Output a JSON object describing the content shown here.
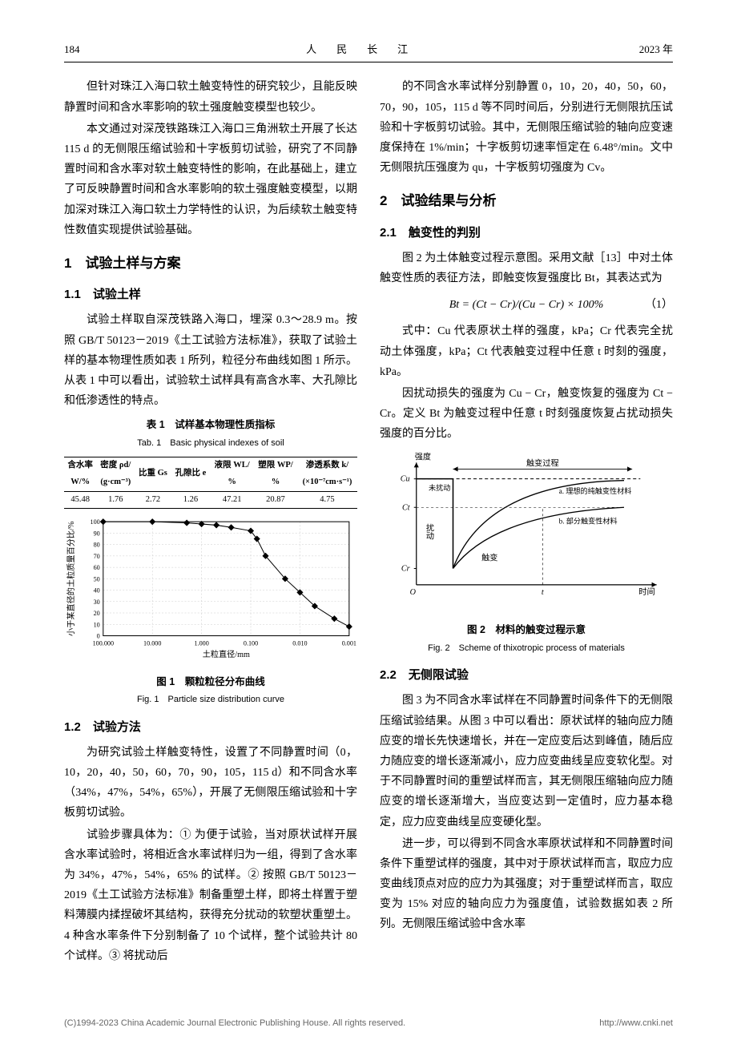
{
  "header": {
    "page_num": "184",
    "journal": "人　民　长　江",
    "year": "2023 年"
  },
  "left": {
    "p1": "但针对珠江入海口软土触变特性的研究较少，且能反映静置时间和含水率影响的软土强度触变模型也较少。",
    "p2": "本文通过对深茂铁路珠江入海口三角洲软土开展了长达 115 d 的无侧限压缩试验和十字板剪切试验，研究了不同静置时间和含水率对软土触变特性的影响，在此基础上，建立了可反映静置时间和含水率影响的软土强度触变模型，以期加深对珠江入海口软土力学特性的认识，为后续软土触变特性数值实现提供试验基础。",
    "sec1": "1　试验土样与方案",
    "sec11": "1.1　试验土样",
    "p3": "试验土样取自深茂铁路入海口，埋深 0.3～28.9 m。按照 GB/T 50123－2019《土工试验方法标准》，获取了试验土样的基本物理性质如表 1 所列，粒径分布曲线如图 1 所示。从表 1 中可以看出，试验软土试样具有高含水率、大孔隙比和低渗透性的特点。",
    "table1": {
      "caption_cn": "表 1　试样基本物理性质指标",
      "caption_en": "Tab. 1　Basic physical indexes of soil",
      "headers_top": [
        "含水率",
        "密度 ρd/",
        "比重 Gs",
        "孔隙比 e",
        "液限 WL/",
        "塑限 WP/",
        "渗透系数 k/"
      ],
      "headers_bot": [
        "W/%",
        "(g·cm⁻³)",
        "",
        "",
        "%",
        "%",
        "(×10⁻⁷cm·s⁻¹)"
      ],
      "row": [
        "45.48",
        "1.76",
        "2.72",
        "1.26",
        "47.21",
        "20.87",
        "4.75"
      ]
    },
    "fig1": {
      "caption_cn": "图 1　颗粒粒径分布曲线",
      "caption_en": "Fig. 1　Particle size distribution curve",
      "xlabel": "土粒直径/mm",
      "ylabel": "小于某直径的土粒质量百分比/%",
      "xticks": [
        "100.000",
        "10.000",
        "1.000",
        "0.100",
        "0.010",
        "0.001"
      ],
      "yticks": [
        0,
        10,
        20,
        30,
        40,
        50,
        60,
        70,
        80,
        90,
        100
      ],
      "points_x": [
        100,
        10,
        2,
        1,
        0.5,
        0.25,
        0.1,
        0.075,
        0.05,
        0.02,
        0.01,
        0.005,
        0.002,
        0.001
      ],
      "points_y": [
        100,
        100,
        99,
        98,
        97,
        95,
        92,
        85,
        70,
        50,
        38,
        26,
        15,
        8
      ],
      "line_color": "#000000",
      "marker": "diamond",
      "marker_size": 4,
      "grid_color": "#cccccc",
      "background_color": "#ffffff"
    },
    "sec12": "1.2　试验方法",
    "p4": "为研究试验土样触变特性，设置了不同静置时间（0，10，20，40，50，60，70，90，105，115 d）和不同含水率（34%，47%，54%，65%），开展了无侧限压缩试验和十字板剪切试验。",
    "p5": "试验步骤具体为：① 为便于试验，当对原状试样开展含水率试验时，将相近含水率试样归为一组，得到了含水率为 34%，47%，54%，65% 的试样。② 按照 GB/T 50123－2019《土工试验方法标准》制备重塑土样，即将土样置于塑料薄膜内揉捏破坏其结构，获得充分扰动的软塑状重塑土。4 种含水率条件下分别制备了 10 个试样，整个试验共计 80 个试样。③ 将扰动后"
  },
  "right": {
    "p1": "的不同含水率试样分别静置 0，10，20，40，50，60，70，90，105，115 d 等不同时间后，分别进行无侧限抗压试验和十字板剪切试验。其中，无侧限压缩试验的轴向应变速度保持在 1%/min；十字板剪切速率恒定在 6.48°/min。文中无侧限抗压强度为 qu，十字板剪切强度为 Cv。",
    "sec2": "2　试验结果与分析",
    "sec21": "2.1　触变性的判别",
    "p2": "图 2 为土体触变过程示意图。采用文献［13］中对土体触变性质的表征方法，即触变恢复强度比 Bt，其表达式为",
    "eq1": "Bt = (Ct − Cr)/(Cu − Cr) × 100%",
    "eq1_num": "（1）",
    "p3": "式中：Cu 代表原状土样的强度，kPa；Cr 代表完全扰动土体强度，kPa；Ct 代表触变过程中任意 t 时刻的强度，kPa。",
    "p4": "因扰动损失的强度为 Cu − Cr，触变恢复的强度为 Ct − Cr。定义 Bt 为触变过程中任意 t 时刻强度恢复占扰动损失强度的百分比。",
    "fig2": {
      "caption_cn": "图 2　材料的触变过程示意",
      "caption_en": "Fig. 2　Scheme of thixotropic process of materials",
      "ylabel": "强度",
      "xlabel": "时间",
      "top_label": "触变过程",
      "cu_label": "Cu",
      "ct_label": "Ct",
      "cr_label": "Cr",
      "unperturbed": "未扰动",
      "perturb": "扰动",
      "thixo": "触变",
      "curve_a": "a. 理想的纯触变性材料",
      "curve_b": "b. 部分触变性材料",
      "origin": "O",
      "t_label": "t",
      "line_color": "#000000",
      "background_color": "#ffffff"
    },
    "sec22": "2.2　无侧限试验",
    "p5": "图 3 为不同含水率试样在不同静置时间条件下的无侧限压缩试验结果。从图 3 中可以看出：原状试样的轴向应力随应变的增长先快速增长，并在一定应变后达到峰值，随后应力随应变的增长逐渐减小，应力应变曲线呈应变软化型。对于不同静置时间的重塑试样而言，其无侧限压缩轴向应力随应变的增长逐渐增大，当应变达到一定值时，应力基本稳定，应力应变曲线呈应变硬化型。",
    "p6": "进一步，可以得到不同含水率原状试样和不同静置时间条件下重塑试样的强度，其中对于原状试样而言，取应力应变曲线顶点对应的应力为其强度；对于重塑试样而言，取应变为 15% 对应的轴向应力为强度值，试验数据如表 2 所列。无侧限压缩试验中含水率"
  },
  "footer": {
    "copyright": "(C)1994-2023 China Academic Journal Electronic Publishing House. All rights reserved.",
    "url": "http://www.cnki.net"
  }
}
